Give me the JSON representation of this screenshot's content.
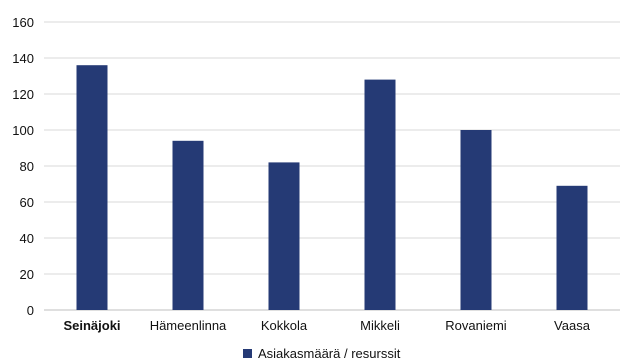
{
  "chart_data": {
    "type": "bar",
    "categories": [
      "Seinäjoki",
      "Hämeenlinna",
      "Kokkola",
      "Mikkeli",
      "Rovaniemi",
      "Vaasa"
    ],
    "bold_categories": [
      "Seinäjoki"
    ],
    "series": [
      {
        "name": "Asiakasmäärä / resurssit",
        "values": [
          136,
          94,
          82,
          128,
          100,
          69
        ],
        "color": "#253a75"
      }
    ],
    "title": "",
    "xlabel": "",
    "ylabel": "",
    "ylim": [
      0,
      160
    ],
    "yticks": [
      0,
      20,
      40,
      60,
      80,
      100,
      120,
      140,
      160
    ],
    "grid": "horizontal",
    "legend": "bottom-center",
    "gridline_color": "#d9d9d9",
    "axis_color": "#bfbfbf"
  }
}
